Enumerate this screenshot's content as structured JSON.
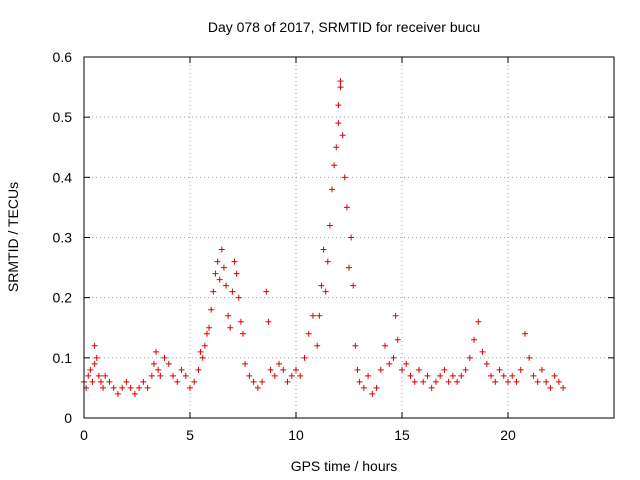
{
  "chart_data": {
    "type": "scatter",
    "title": "Day 078 of 2017, SRMTID for receiver bucu",
    "xlabel": "GPS time / hours",
    "ylabel": "SRMTID / TECUs",
    "xlim": [
      0,
      25
    ],
    "ylim": [
      0,
      0.6
    ],
    "x_ticks": [
      0,
      5,
      10,
      15,
      20
    ],
    "x_tick_labels": [
      "0",
      "5",
      "10",
      "15",
      "20"
    ],
    "y_ticks": [
      0,
      0.1,
      0.2,
      0.3,
      0.4,
      0.5,
      0.6
    ],
    "y_tick_labels": [
      "0",
      "0.1",
      "0.2",
      "0.3",
      "0.4",
      "0.5",
      "0.6"
    ],
    "grid": true,
    "marker": "plus",
    "series": [
      {
        "name": "SRMTID",
        "color": "#e00000",
        "x": [
          0.0,
          0.1,
          0.2,
          0.3,
          0.4,
          0.5,
          0.5,
          0.6,
          0.7,
          0.8,
          0.9,
          1.0,
          1.2,
          1.4,
          1.6,
          1.8,
          2.0,
          2.2,
          2.4,
          2.6,
          2.8,
          3.0,
          3.2,
          3.3,
          3.4,
          3.5,
          3.6,
          3.8,
          4.0,
          4.2,
          4.4,
          4.6,
          4.8,
          5.0,
          5.2,
          5.4,
          5.5,
          5.6,
          5.7,
          5.8,
          5.9,
          6.0,
          6.1,
          6.2,
          6.3,
          6.4,
          6.5,
          6.6,
          6.7,
          6.8,
          6.9,
          7.0,
          7.1,
          7.2,
          7.3,
          7.4,
          7.5,
          7.6,
          7.8,
          8.0,
          8.2,
          8.4,
          8.6,
          8.7,
          8.8,
          9.0,
          9.2,
          9.4,
          9.6,
          9.8,
          10.0,
          10.2,
          10.4,
          10.6,
          10.8,
          11.0,
          11.1,
          11.2,
          11.3,
          11.4,
          11.5,
          11.6,
          11.7,
          11.8,
          11.9,
          12.0,
          12.0,
          12.1,
          12.1,
          12.2,
          12.3,
          12.4,
          12.5,
          12.6,
          12.7,
          12.8,
          12.9,
          13.0,
          13.2,
          13.4,
          13.6,
          13.8,
          14.0,
          14.2,
          14.4,
          14.6,
          14.7,
          14.8,
          15.0,
          15.2,
          15.4,
          15.6,
          15.8,
          16.0,
          16.2,
          16.4,
          16.6,
          16.8,
          17.0,
          17.2,
          17.4,
          17.6,
          17.8,
          18.0,
          18.2,
          18.4,
          18.6,
          18.8,
          19.0,
          19.2,
          19.4,
          19.6,
          19.8,
          20.0,
          20.2,
          20.4,
          20.6,
          20.8,
          21.0,
          21.2,
          21.4,
          21.6,
          21.8,
          22.0,
          22.2,
          22.4,
          22.6
        ],
        "y": [
          0.06,
          0.05,
          0.07,
          0.08,
          0.06,
          0.12,
          0.09,
          0.1,
          0.07,
          0.06,
          0.05,
          0.07,
          0.06,
          0.05,
          0.04,
          0.05,
          0.06,
          0.05,
          0.04,
          0.05,
          0.06,
          0.05,
          0.07,
          0.09,
          0.11,
          0.08,
          0.07,
          0.1,
          0.09,
          0.07,
          0.06,
          0.08,
          0.07,
          0.05,
          0.06,
          0.08,
          0.11,
          0.1,
          0.12,
          0.14,
          0.15,
          0.18,
          0.21,
          0.24,
          0.26,
          0.23,
          0.28,
          0.25,
          0.22,
          0.17,
          0.15,
          0.21,
          0.26,
          0.24,
          0.2,
          0.16,
          0.14,
          0.09,
          0.07,
          0.06,
          0.05,
          0.06,
          0.21,
          0.16,
          0.08,
          0.07,
          0.09,
          0.08,
          0.06,
          0.07,
          0.08,
          0.07,
          0.1,
          0.14,
          0.17,
          0.12,
          0.17,
          0.22,
          0.28,
          0.21,
          0.26,
          0.32,
          0.38,
          0.42,
          0.45,
          0.49,
          0.52,
          0.55,
          0.56,
          0.47,
          0.4,
          0.35,
          0.25,
          0.3,
          0.22,
          0.12,
          0.08,
          0.06,
          0.05,
          0.07,
          0.04,
          0.05,
          0.08,
          0.12,
          0.09,
          0.1,
          0.17,
          0.13,
          0.08,
          0.09,
          0.07,
          0.06,
          0.08,
          0.06,
          0.07,
          0.05,
          0.06,
          0.07,
          0.08,
          0.06,
          0.07,
          0.06,
          0.07,
          0.08,
          0.1,
          0.13,
          0.16,
          0.11,
          0.09,
          0.07,
          0.06,
          0.08,
          0.07,
          0.06,
          0.07,
          0.06,
          0.08,
          0.14,
          0.1,
          0.07,
          0.06,
          0.08,
          0.06,
          0.05,
          0.07,
          0.06,
          0.05
        ]
      }
    ]
  }
}
